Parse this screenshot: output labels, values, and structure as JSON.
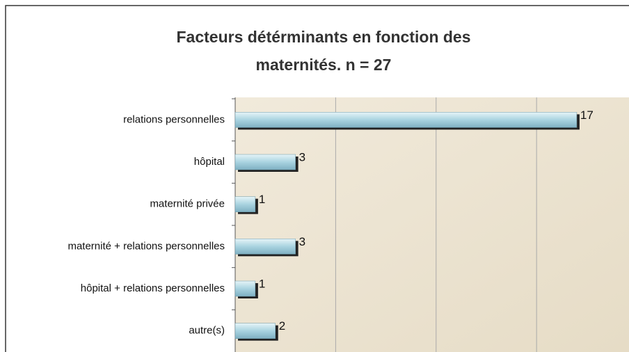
{
  "chart_data": {
    "type": "barh",
    "title": [
      "Facteurs détérminants en fonction des",
      "maternités. n = 27"
    ],
    "categories": [
      "relations personnelles",
      "hôpital",
      "maternité privée",
      "maternité + relations personnelles",
      "hôpital + relations personnelles",
      "autre(s)"
    ],
    "values": [
      17,
      3,
      1,
      3,
      1,
      2
    ],
    "color": "#a9d3e0",
    "xlim": [
      0,
      19.6
    ],
    "xticks": [
      0,
      5,
      10,
      15
    ],
    "grid": true
  }
}
